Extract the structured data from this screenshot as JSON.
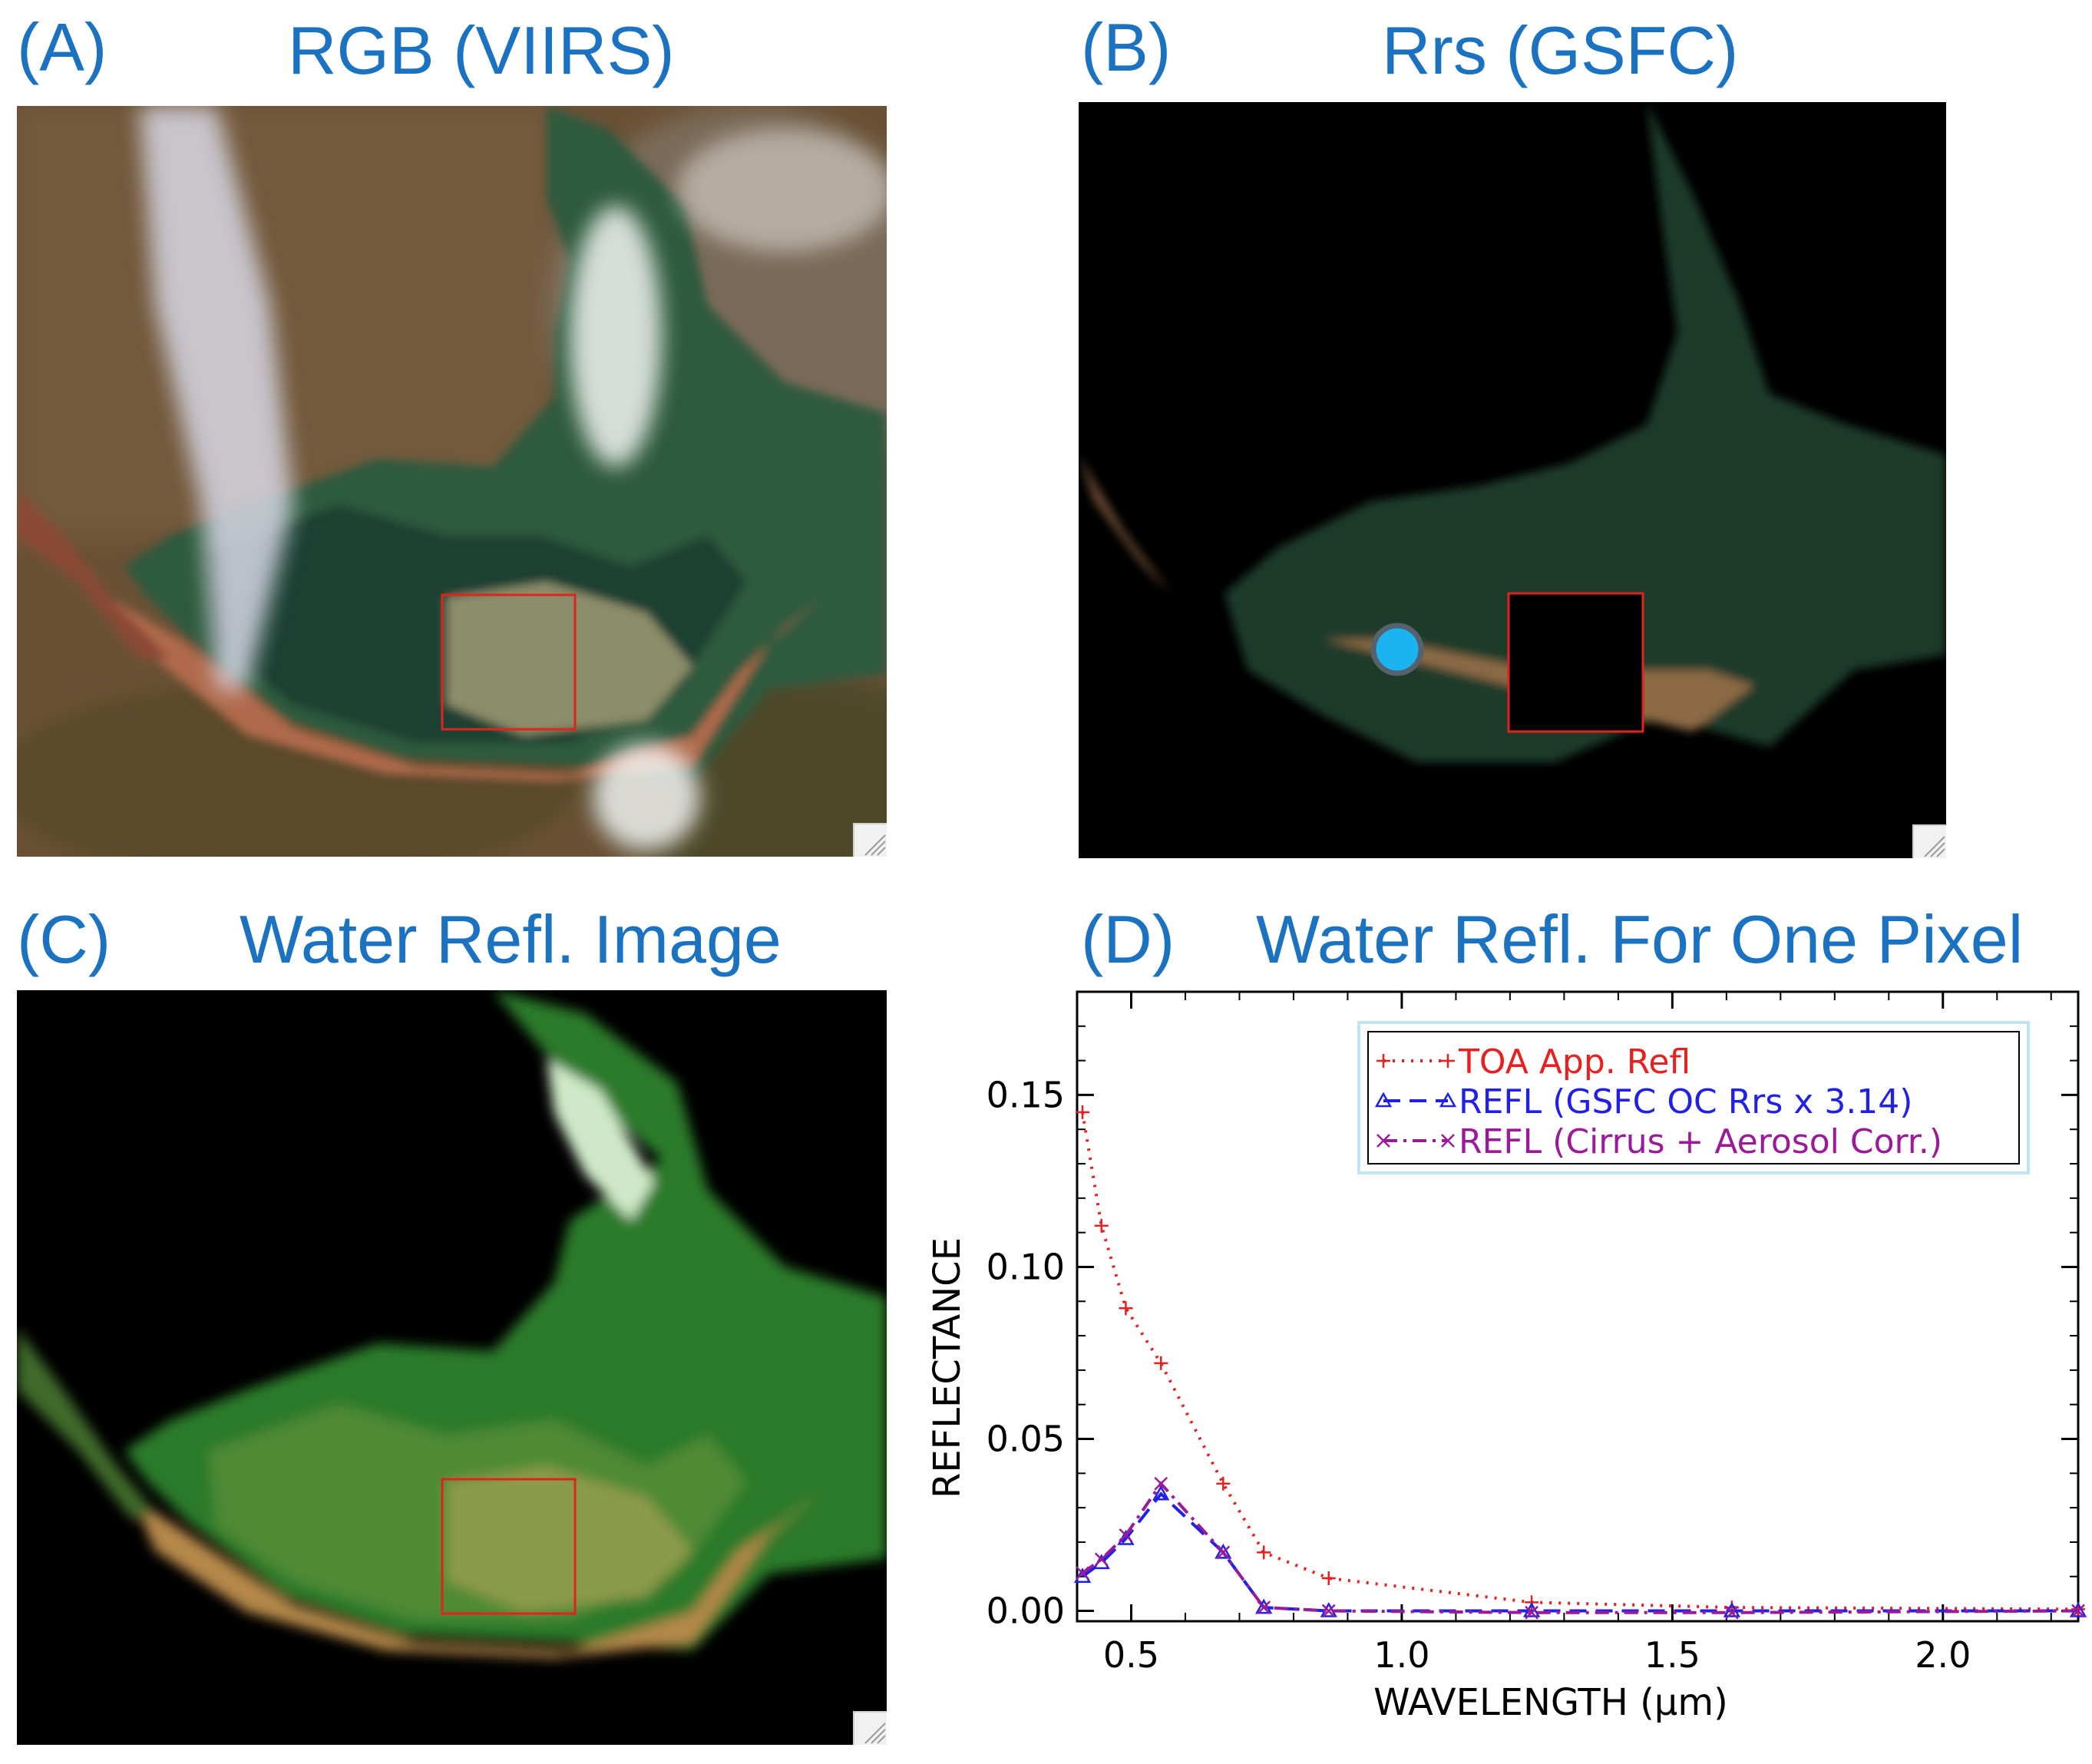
{
  "panels": [
    {
      "letter": "(A)",
      "title": "RGB (VIIRS)"
    },
    {
      "letter": "(B)",
      "title": "Rrs (GSFC)"
    },
    {
      "letter": "(C)",
      "title": "Water Refl. Image"
    },
    {
      "letter": "(D)",
      "title": "Water Refl. For One Pixel"
    }
  ],
  "colors": {
    "title_blue": "#1a72c0",
    "roi_box": "#e0241d",
    "sample_marker": "#1bb3f0",
    "toa": "#e82020",
    "gsfc": "#2020e8",
    "cirrus": "#9a1a9a"
  },
  "chart_data": {
    "type": "line",
    "title": "Water Refl. For One Pixel",
    "xlabel": "WAVELENGTH (μm)",
    "ylabel": "REFLECTANCE",
    "xlim": [
      0.4,
      2.25
    ],
    "ylim": [
      -0.003,
      0.18
    ],
    "xticks": [
      0.5,
      1.0,
      1.5,
      2.0
    ],
    "xtick_labels": [
      "0.5",
      "1.0",
      "1.5",
      "2.0"
    ],
    "yticks": [
      0.0,
      0.05,
      0.1,
      0.15
    ],
    "ytick_labels": [
      "0.00",
      "0.05",
      "0.10",
      "0.15"
    ],
    "grid": false,
    "legend_position": "top-right",
    "series": [
      {
        "name": "TOA App. Refl",
        "color": "#e82020",
        "linestyle": "dotted",
        "marker": "+",
        "x": [
          0.41,
          0.445,
          0.49,
          0.555,
          0.67,
          0.745,
          0.865,
          1.24,
          1.61,
          2.25
        ],
        "y": [
          0.145,
          0.112,
          0.088,
          0.072,
          0.037,
          0.017,
          0.0095,
          0.0025,
          0.001,
          0.0005
        ]
      },
      {
        "name": "REFL (GSFC OC Rrs x 3.14)",
        "color": "#2020e8",
        "linestyle": "dashed",
        "marker": "triangle",
        "x": [
          0.41,
          0.445,
          0.49,
          0.555,
          0.67,
          0.745,
          0.865,
          1.24,
          1.61,
          2.25
        ],
        "y": [
          0.01,
          0.014,
          0.021,
          0.034,
          0.017,
          0.001,
          0.0,
          0.0,
          0.0,
          0.0
        ]
      },
      {
        "name": "REFL (Cirrus + Aerosol Corr.)",
        "color": "#9a1a9a",
        "linestyle": "dashdot",
        "marker": "x",
        "x": [
          0.41,
          0.445,
          0.49,
          0.555,
          0.67,
          0.745,
          0.865,
          1.24,
          1.61,
          2.25
        ],
        "y": [
          0.011,
          0.015,
          0.022,
          0.037,
          0.017,
          0.001,
          0.0,
          -0.0005,
          -0.0005,
          0.0
        ]
      }
    ]
  }
}
